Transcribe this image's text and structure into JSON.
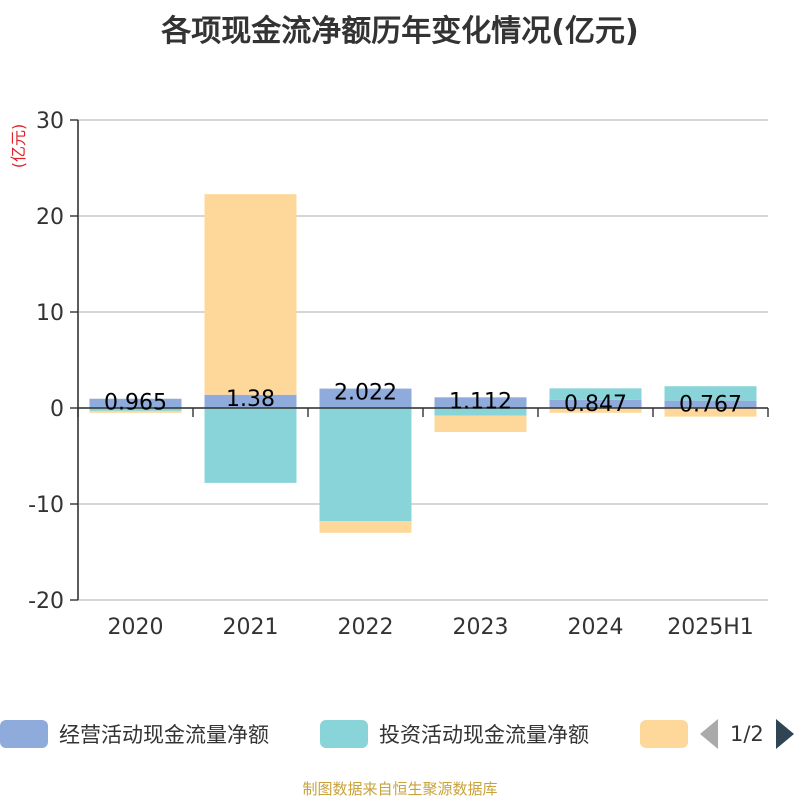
{
  "title": "各项现金流净额历年变化情况(亿元)",
  "source": "制图数据来自恒生聚源数据库",
  "legend": {
    "items": [
      {
        "label": "经营活动现金流量净额",
        "color": "#8eabdb"
      },
      {
        "label": "投资活动现金流量净额",
        "color": "#88d4d8"
      },
      {
        "label": "",
        "color": "#fed89a"
      }
    ],
    "pager": "1/2"
  },
  "chart_data": {
    "type": "bar",
    "stacked": true,
    "title": "各项现金流净额历年变化情况(亿元)",
    "ylabel": "(亿元)",
    "xlabel": "",
    "ylim": [
      -20,
      30
    ],
    "yticks": [
      -20,
      -10,
      0,
      10,
      20,
      30
    ],
    "categories": [
      "2020",
      "2021",
      "2022",
      "2023",
      "2024",
      "2025H1"
    ],
    "series": [
      {
        "name": "经营活动现金流量净额",
        "color": "#8eabdb",
        "values": [
          0.965,
          1.38,
          2.022,
          1.112,
          0.847,
          0.767
        ],
        "labels": [
          "0.965",
          "1.38",
          "2.022",
          "1.112",
          "0.847",
          "0.767"
        ]
      },
      {
        "name": "投资活动现金流量净额",
        "color": "#88d4d8",
        "values": [
          -0.3,
          -7.8,
          -11.8,
          -0.8,
          1.2,
          1.5
        ]
      },
      {
        "name": "",
        "color": "#fed89a",
        "values": [
          -0.2,
          20.9,
          -1.2,
          -1.7,
          -0.5,
          -0.9
        ]
      }
    ],
    "grid": true,
    "legend_position": "bottom"
  }
}
